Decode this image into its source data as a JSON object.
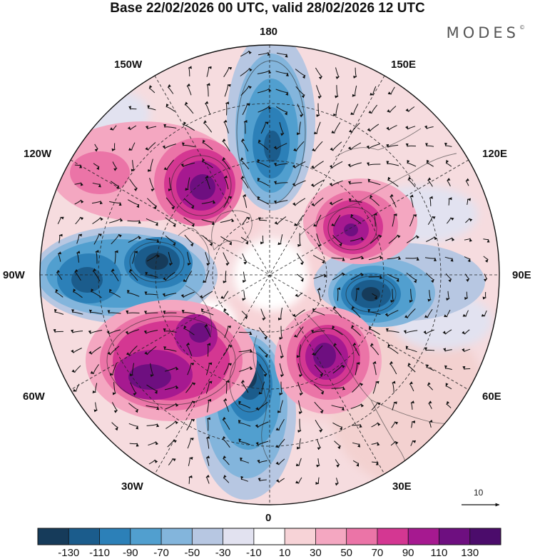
{
  "title": "Base 22/02/2026 00 UTC, valid 28/02/2026 12 UTC",
  "brand": "MODES",
  "brand_mark": "©",
  "longitude_labels": {
    "top": "180",
    "top_left": "150W",
    "top_right": "150E",
    "upper_left": "120W",
    "upper_right": "120E",
    "left": "90W",
    "right": "90E",
    "lower_left": "60W",
    "lower_right": "60E",
    "bottom_left": "30W",
    "bottom_right": "30E",
    "bottom": "0"
  },
  "vector_scale": {
    "label": "10"
  },
  "colorbar": {
    "colors": [
      "#163b5a",
      "#1b5c8c",
      "#2c80b8",
      "#519fcf",
      "#83b5dc",
      "#b7c7e2",
      "#e2e2f0",
      "#ffffff",
      "#f7d3d7",
      "#f4a7c1",
      "#eb74a7",
      "#d43792",
      "#a61990",
      "#6e0f80",
      "#4b0c6b"
    ],
    "labels": [
      "-130",
      "-110",
      "-90",
      "-70",
      "-50",
      "-30",
      "-10",
      "10",
      "30",
      "50",
      "70",
      "90",
      "110",
      "130"
    ]
  }
}
